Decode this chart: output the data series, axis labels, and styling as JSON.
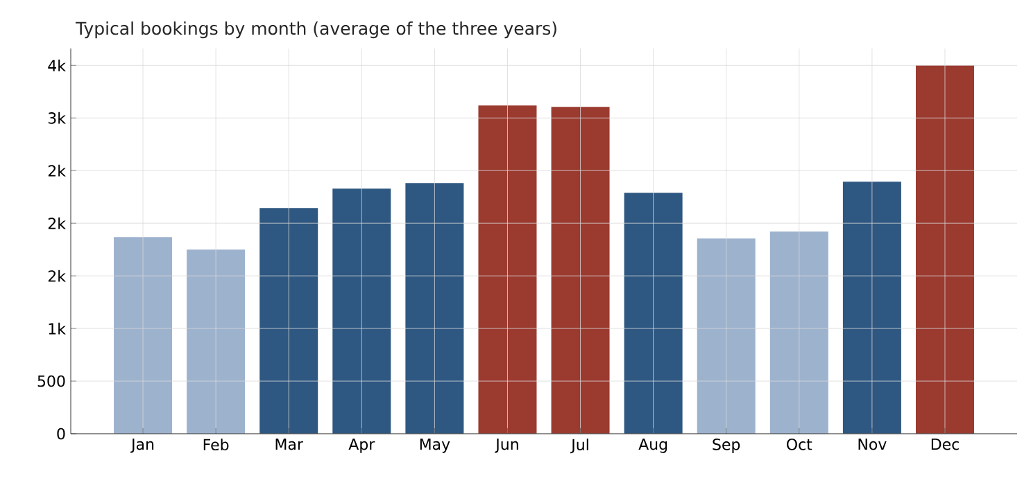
{
  "chart_data": {
    "type": "bar",
    "title": "Typical bookings by month (average of the three years)",
    "categories": [
      "Jan",
      "Feb",
      "Mar",
      "Apr",
      "May",
      "Jun",
      "Jul",
      "Aug",
      "Sep",
      "Oct",
      "Nov",
      "Dec"
    ],
    "values": [
      1868,
      1750,
      2145,
      2329,
      2382,
      3118,
      3105,
      2289,
      1855,
      1921,
      2395,
      3500
    ],
    "colors": [
      "#9db2cd",
      "#9db2cd",
      "#2e5781",
      "#2e5781",
      "#2e5781",
      "#9b3a2f",
      "#9b3a2f",
      "#2e5781",
      "#9db2cd",
      "#9db2cd",
      "#2e5781",
      "#9b3a2f"
    ],
    "ylim": [
      0,
      3660
    ],
    "yticks": [
      0,
      500,
      {
        "value": 1000,
        "label": "1k"
      },
      {
        "value": 1500,
        "label": "2k"
      },
      {
        "value": 2000,
        "label": "2k"
      },
      {
        "value": 2500,
        "label": "2k"
      },
      {
        "value": 3000,
        "label": "3k"
      },
      {
        "value": 3500,
        "label": "4k"
      }
    ],
    "grid": true
  }
}
